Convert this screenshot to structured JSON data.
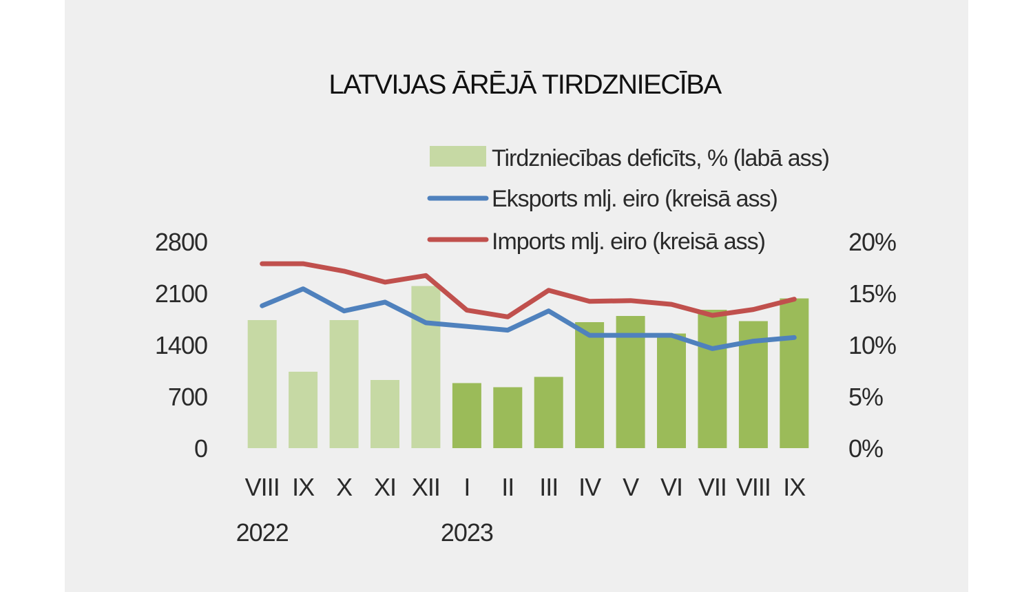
{
  "chart_data": {
    "type": "bar+line",
    "title": "LATVIJAS ĀRĒJĀ TIRDZNIECĪBA",
    "categories": [
      "VIII",
      "IX",
      "X",
      "XI",
      "XII",
      "I",
      "II",
      "III",
      "IV",
      "V",
      "VI",
      "VII",
      "VIII",
      "IX"
    ],
    "year_labels": [
      {
        "label": "2022",
        "category_index": 0
      },
      {
        "label": "2023",
        "category_index": 5
      }
    ],
    "left_axis": {
      "ylim": [
        0,
        2800
      ],
      "ticks": [
        "0",
        "700",
        "1400",
        "2100",
        "2800"
      ],
      "tick_values": [
        0,
        700,
        1400,
        2100,
        2800
      ]
    },
    "right_axis": {
      "ylim": [
        0,
        20
      ],
      "ticks": [
        "0%",
        "5%",
        "10%",
        "15%",
        "20%"
      ],
      "tick_values": [
        0,
        5,
        10,
        15,
        20
      ]
    },
    "series": [
      {
        "name": "Tirdzniecības deficīts, % (labā ass)",
        "type": "bar",
        "axis": "right",
        "color_2022": "#c6d9a4",
        "color_2023": "#9bbb59",
        "values": [
          12.4,
          7.4,
          12.4,
          6.6,
          15.7,
          6.3,
          5.9,
          6.9,
          12.2,
          12.8,
          11.1,
          13.4,
          12.3,
          14.5
        ]
      },
      {
        "name": "Eksports mlj. eiro (kreisā ass)",
        "type": "line",
        "axis": "left",
        "color": "#4f81bd",
        "values": [
          1930,
          2160,
          1860,
          1980,
          1700,
          1650,
          1600,
          1860,
          1530,
          1530,
          1530,
          1350,
          1450,
          1500
        ]
      },
      {
        "name": "Imports mlj. eiro (kreisā ass)",
        "type": "line",
        "axis": "left",
        "color": "#c0504d",
        "values": [
          2500,
          2500,
          2400,
          2250,
          2340,
          1870,
          1780,
          2140,
          1990,
          2000,
          1950,
          1800,
          1880,
          2020
        ]
      }
    ],
    "legend_position": "top-right"
  }
}
